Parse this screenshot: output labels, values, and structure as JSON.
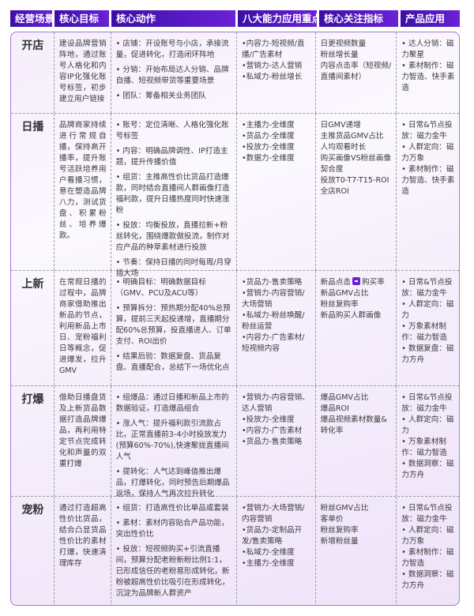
{
  "colors": {
    "header_start": "#3b0fa6",
    "header_end": "#6a22d6",
    "border": "#a27ad6"
  },
  "headers": [
    "经营场景",
    "核心目标",
    "核心动作",
    "八大能力应用重点",
    "核心关注指标",
    "产品应用"
  ],
  "rows": [
    {
      "scene": "开店",
      "goal": "建设品牌营销阵地，通过账号人格化和内容IP化强化账号标签，初步建立用户链接",
      "actions": [
        "• 店铺：开设账号与小店，承接流量，促进转化，打造闭环阵地",
        "• 分销：开始布局达人分销、品牌自播、短视频带货等重要场景",
        "• 团队：筹备相关业务团队"
      ],
      "abilities": [
        "•内容力-短视频/直播/广告素材",
        "•营销力-达人营销",
        "•私域力-粉丝增长"
      ],
      "metrics": [
        {
          "text": "日更视频数量"
        },
        {
          "text": "粉丝增长量"
        },
        {
          "text": "内容点击率（短视频/直播间素材）"
        }
      ],
      "products": [
        "• 达人分销：磁力聚星",
        "• 素材制作：磁力智造、快手素造"
      ],
      "height": 103
    },
    {
      "scene": "日播",
      "goal": "品牌商家持续进行常规自播，保持高开播率，提升账号活跃培养用户看播习惯，意在塑造品牌八力，测试货盘、积累粉丝、培养爆款。",
      "actions": [
        "• 账号：定位清晰、人格化强化账号标签",
        "• 内容：明确品牌调性、IP打造主题，提升传播价值",
        "• 组货：主推高性价比货品打造爆款，同时结合直播间人群画像打造福利款，提升日播热度同时快速涨粉",
        "• 投放：均衡投放，直播拉新+粉丝转化，围绕爆款做投流，制作对应产品的种草素材进行投放",
        "• 节奏：保持日播的同时每周/月穿插大场"
      ],
      "abilities": [
        "•主播力-全维度",
        "•货品力-全维度",
        "•投放力-全维度",
        "•数据力-全维度"
      ],
      "metrics": [
        {
          "text": "日GMV递增"
        },
        {
          "text": "主推货品GMV占比"
        },
        {
          "text": "人均观看时长"
        },
        {
          "text": "购买画像VS粉丝画像契合度"
        },
        {
          "text": "投放T0-T7-T15-ROI"
        },
        {
          "text": "全店ROI"
        }
      ],
      "products": [
        "• 日常&节点投放：磁力金牛",
        "• 人群定向：磁力万象",
        "• 素材制作：磁力智造、快手素造"
      ],
      "height": 199
    },
    {
      "scene": "上新",
      "goal": "在常规日播的过程中，品牌商家借助推出新品的节点，利用新品上市日、宠粉福利日等概念，促进爆发，拉升GMV",
      "actions": [
        "• 明确目标：明确数据目标（GMV、PCU及ACU等）",
        "• 预算拆分：预热期分配40%总预算，提前三天起投递增，直播期分配60%总预算，投直播进人、订单支付、ROI出价",
        "• 结果后验：数据复盘、货品复盘、直播配合，总结下一场优化点"
      ],
      "abilities": [
        "•货品力-售卖策略",
        "•营销力-内容营销/大场营销",
        "•私域力-粉丝唤醒/粉丝运营",
        "•内容力-广告素材/短视频内容"
      ],
      "metrics": [
        {
          "before": "新品点击",
          "icon": "arrow-right-icon",
          "after": "购买率"
        },
        {
          "text": "新品GMV占比"
        },
        {
          "text": "粉丝复购率"
        },
        {
          "text": "新品购买人群画像"
        }
      ],
      "products": [
        "• 日常&节点投放：磁力金牛",
        "• 人群定向：磁力",
        "• 万象素材制作：磁力智造",
        "• 数据复盘：磁力方舟"
      ],
      "height": 146
    },
    {
      "scene": "打爆",
      "goal": "借助日播盘货及上新货品数据打造品牌爆品，再利用特定节点完成转化和声量的双重打爆",
      "actions": [
        "• 组爆品：通过日播和新品上市的数据验证，打造爆品组合",
        "• 涨人气：提升福利款引流款占比，正常直播前3-4小时投放发力(预算60%-70%),快速聚拢直播间人气",
        "• 提转化：人气达到峰值推出爆品，打爆转化，同时预告后期爆品返场，保持人气再次拉升转化"
      ],
      "abilities": [
        "•营销力-内容营销、达人营销",
        "•投放力-全维度",
        "•内容力-广告素材",
        "•货品力-售卖策略"
      ],
      "metrics": [
        {
          "text": "爆品GMV占比"
        },
        {
          "text": "爆品ROI"
        },
        {
          "text": "爆品视频素材数量&转化率"
        }
      ],
      "products": [
        "• 日常&节点投放：磁力金牛",
        "• 人群定向：磁力",
        "• 万象素材制作：磁力智造",
        "• 数据洞察：磁力方舟"
      ],
      "height": 140
    },
    {
      "scene": "宠粉",
      "goal": "通过打造超高性价比货品，结合凸显货品性价比的素材打爆，快速清理库存",
      "actions": [
        "• 组货：打造高性价比单品或套装",
        "• 素材：素材内容贴合产品功能，突出性价比",
        "• 投放：短视频购买+引流直播间，预算分配老粉新粉比例1:1，已形成信任的老粉易形成转化，新粉被超高性价比吸引在形成转化，沉淀为品牌新人群资产"
      ],
      "abilities": [
        "•营销力-大场营销/内容营销",
        "•货品力-定制品开发/售卖策略",
        "•私域力-全维度",
        "•主播力-全维度"
      ],
      "metrics": [
        {
          "text": "粉丝GMV占比"
        },
        {
          "text": "客单价"
        },
        {
          "text": "粉丝复购率"
        },
        {
          "text": "新增粉丝量"
        }
      ],
      "products": [
        "• 日常&节点投放：磁力金牛",
        "• 人群定向：磁力万象",
        "• 素材制作：磁力智造",
        "• 数据洞察：磁力方舟"
      ],
      "height": 139
    }
  ]
}
